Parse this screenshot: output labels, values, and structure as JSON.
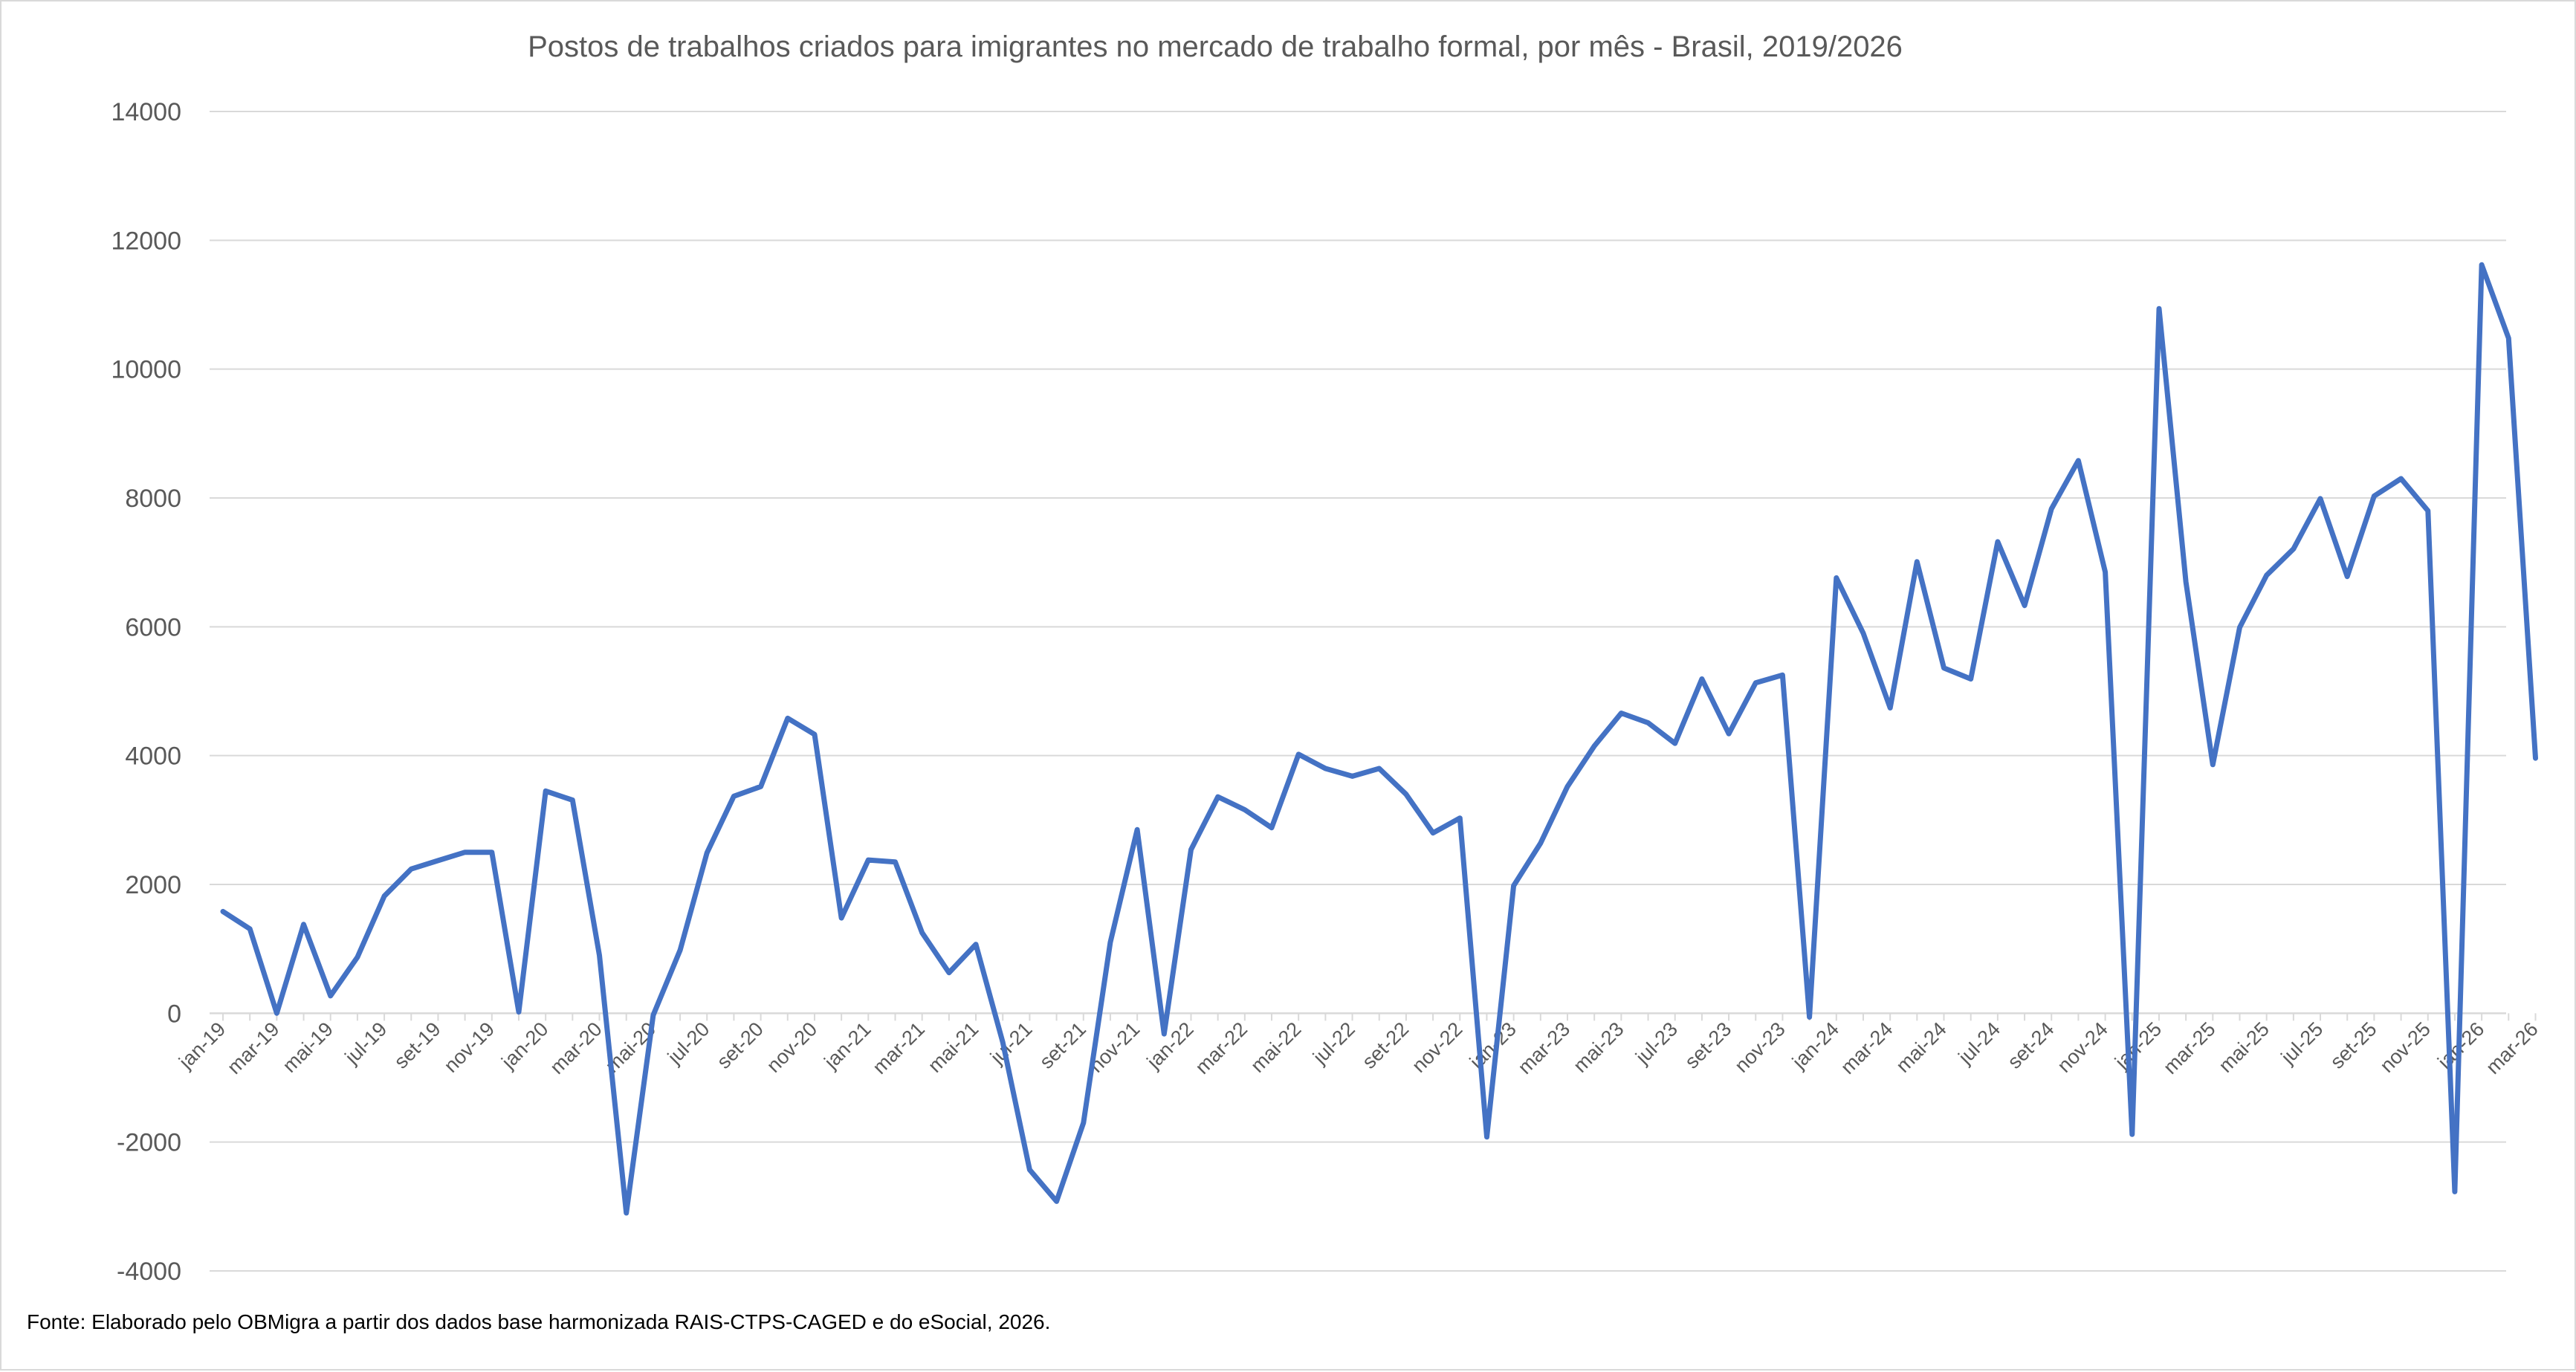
{
  "chart_data": {
    "type": "line",
    "title": "Postos de trabalhos criados para imigrantes no mercado de trabalho formal, por mês - Brasil, 2019/2026",
    "source": "Fonte: Elaborado pelo OBMigra  a partir dos dados base harmonizada RAIS-CTPS-CAGED e do eSocial, 2026.",
    "xlabel": "",
    "ylabel": "",
    "ylim": [
      -4000,
      14000
    ],
    "yticks": [
      -4000,
      -2000,
      0,
      2000,
      4000,
      6000,
      8000,
      10000,
      12000,
      14000
    ],
    "grid": true,
    "legend": "none",
    "line_color": "#4472C4",
    "grid_color": "#d9d9d9",
    "categories": [
      "jan-19",
      "fev-19",
      "mar-19",
      "abr-19",
      "mai-19",
      "jun-19",
      "jul-19",
      "ago-19",
      "set-19",
      "out-19",
      "nov-19",
      "dez-19",
      "jan-20",
      "fev-20",
      "mar-20",
      "abr-20",
      "mai-20",
      "jun-20",
      "jul-20",
      "ago-20",
      "set-20",
      "out-20",
      "nov-20",
      "dez-20",
      "jan-21",
      "fev-21",
      "mar-21",
      "abr-21",
      "mai-21",
      "jun-21",
      "jul-21",
      "ago-21",
      "set-21",
      "out-21",
      "nov-21",
      "dez-21",
      "jan-22",
      "fev-22",
      "mar-22",
      "abr-22",
      "mai-22",
      "jun-22",
      "jul-22",
      "ago-22",
      "set-22",
      "out-22",
      "nov-22",
      "dez-22",
      "jan-23",
      "fev-23",
      "mar-23",
      "abr-23",
      "mai-23",
      "jun-23",
      "jul-23",
      "ago-23",
      "set-23",
      "out-23",
      "nov-23",
      "dez-23",
      "jan-24",
      "fev-24",
      "mar-24",
      "abr-24",
      "mai-24",
      "jun-24",
      "jul-24",
      "ago-24",
      "set-24",
      "out-24",
      "nov-24",
      "dez-24",
      "jan-25",
      "fev-25",
      "mar-25",
      "abr-25",
      "mai-25",
      "jun-25",
      "jul-25",
      "ago-25",
      "set-25",
      "out-25",
      "nov-25",
      "dez-25",
      "jan-26",
      "fev-26",
      "mar-26"
    ],
    "tick_labels": [
      "jan-19",
      "mar-19",
      "mai-19",
      "jul-19",
      "set-19",
      "nov-19",
      "jan-20",
      "mar-20",
      "mai-20",
      "jul-20",
      "set-20",
      "nov-20",
      "jan-21",
      "mar-21",
      "mai-21",
      "jul-21",
      "set-21",
      "nov-21",
      "jan-22",
      "mar-22",
      "mai-22",
      "jul-22",
      "set-22",
      "nov-22",
      "jan-23",
      "mar-23",
      "mai-23",
      "jul-23",
      "set-23",
      "nov-23",
      "jan-24",
      "mar-24",
      "mai-24",
      "jul-24",
      "set-24",
      "nov-24",
      "jan-25",
      "mar-25",
      "mai-25",
      "jul-25",
      "set-25",
      "nov-25",
      "jan-26",
      "mar-26"
    ],
    "values": [
      1580,
      1310,
      0,
      1380,
      270,
      870,
      1820,
      2240,
      2370,
      2500,
      2500,
      20,
      3450,
      3310,
      900,
      -3100,
      -30,
      980,
      2490,
      3370,
      3520,
      4580,
      4330,
      1480,
      2380,
      2350,
      1250,
      630,
      1070,
      -450,
      -2430,
      -2920,
      -1700,
      1100,
      2850,
      -320,
      2540,
      3360,
      3160,
      2880,
      4020,
      3800,
      3680,
      3800,
      3400,
      2800,
      3030,
      -1920,
      1980,
      2640,
      3520,
      4150,
      4660,
      4510,
      4190,
      5190,
      4340,
      5130,
      5250,
      -60,
      6760,
      5900,
      4740,
      7010,
      5360,
      5190,
      7320,
      6330,
      7830,
      8580,
      6850,
      -1880,
      10940,
      6700,
      3860,
      5990,
      6800,
      7210,
      7990,
      6780,
      8030,
      8300,
      7800,
      -2770,
      11620,
      10480,
      3960
    ]
  }
}
